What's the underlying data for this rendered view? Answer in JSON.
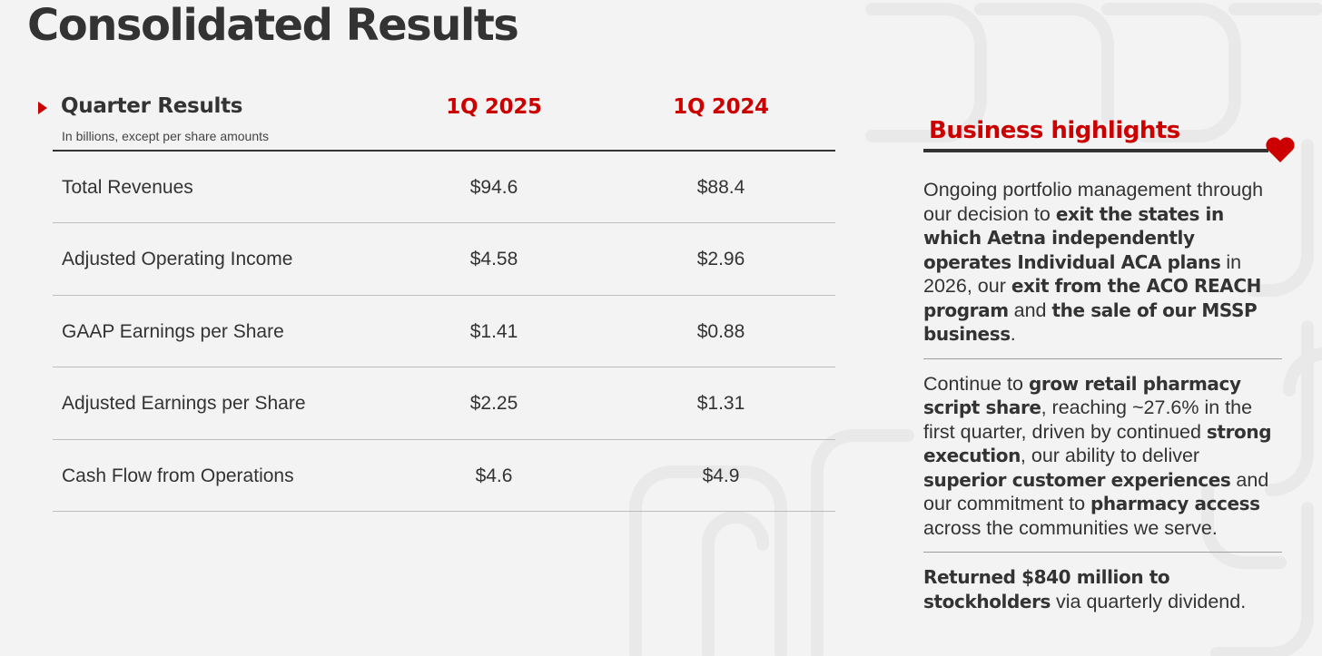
{
  "page": {
    "title": "Consolidated Results"
  },
  "table": {
    "header_label": "Quarter Results",
    "header_subtitle": "In billions, except per share amounts",
    "columns": [
      "1Q 2025",
      "1Q 2024"
    ],
    "rows": [
      {
        "label": "Total Revenues",
        "values": [
          "$94.6",
          "$88.4"
        ]
      },
      {
        "label": "Adjusted Operating Income",
        "values": [
          "$4.58",
          "$2.96"
        ]
      },
      {
        "label": "GAAP Earnings per Share",
        "values": [
          "$1.41",
          "$0.88"
        ]
      },
      {
        "label": "Adjusted Earnings per Share",
        "values": [
          "$2.25",
          "$1.31"
        ]
      },
      {
        "label": "Cash Flow from Operations",
        "values": [
          "$4.6",
          "$4.9"
        ]
      }
    ]
  },
  "highlights": {
    "title": "Business highlights",
    "items": [
      [
        {
          "t": "Ongoing portfolio management through our decision to "
        },
        {
          "t": "exit the states in which Aetna independently operates Individual ACA plans",
          "b": true
        },
        {
          "t": " in 2026, our "
        },
        {
          "t": "exit from the ACO REACH program",
          "b": true
        },
        {
          "t": " and "
        },
        {
          "t": "the sale of our MSSP business",
          "b": true
        },
        {
          "t": "."
        }
      ],
      [
        {
          "t": "Continue to "
        },
        {
          "t": "grow retail pharmacy script share",
          "b": true
        },
        {
          "t": ", reaching ~27.6% in the first quarter, driven by continued "
        },
        {
          "t": "strong execution",
          "b": true
        },
        {
          "t": ", our ability to deliver "
        },
        {
          "t": "superior customer experiences",
          "b": true
        },
        {
          "t": " and our commitment to "
        },
        {
          "t": "pharmacy access",
          "b": true
        },
        {
          "t": " across the communities we serve."
        }
      ],
      [
        {
          "t": "Returned $840 million to stockholders",
          "b": true
        },
        {
          "t": " via quarterly dividend."
        }
      ]
    ]
  },
  "colors": {
    "accent": "#cc0000",
    "text": "#333333",
    "background": "#f3f3f3"
  },
  "icons": {
    "header_marker": "triangle-right-icon",
    "highlight_marker": "heart-icon"
  }
}
